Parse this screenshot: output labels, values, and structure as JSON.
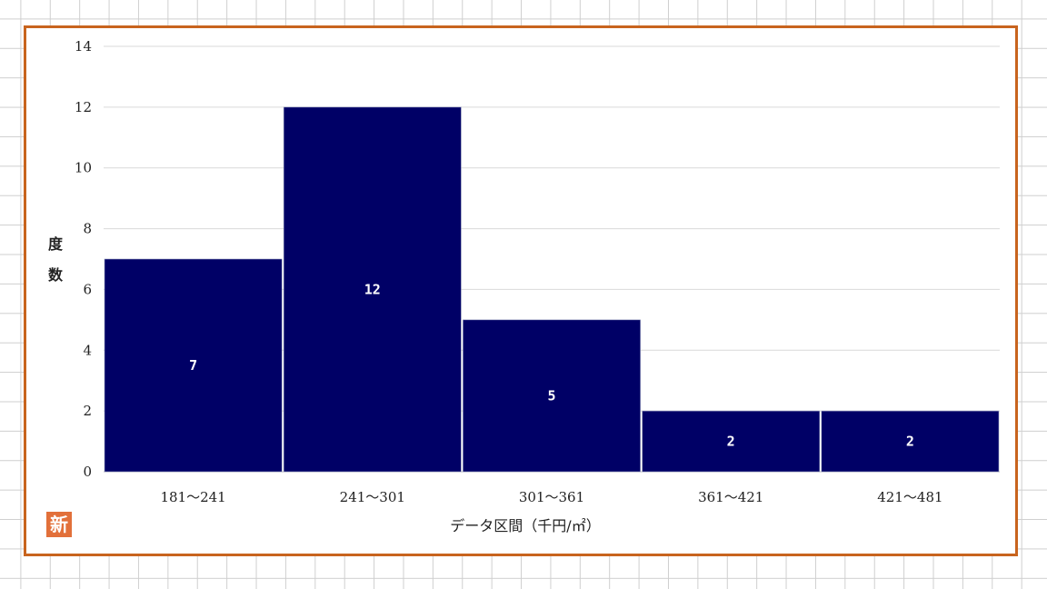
{
  "colors": {
    "bar_fill": "#000066",
    "frame_border": "#c8641e",
    "badge": "#e2703a",
    "gridline": "#d9d9d9"
  },
  "badge": {
    "text": "新"
  },
  "chart_data": {
    "type": "bar",
    "categories": [
      "181～241",
      "241～301",
      "301～361",
      "361～421",
      "421～481"
    ],
    "values": [
      7,
      12,
      5,
      2,
      2
    ],
    "data_labels": [
      "7",
      "12",
      "5",
      "2",
      "2"
    ],
    "xlabel": "データ区間（千円/㎡）",
    "ylabel": "度数",
    "ylim": [
      0,
      14
    ],
    "yticks": [
      0,
      2,
      4,
      6,
      8,
      10,
      12,
      14
    ],
    "grid": true,
    "legend": "none"
  }
}
